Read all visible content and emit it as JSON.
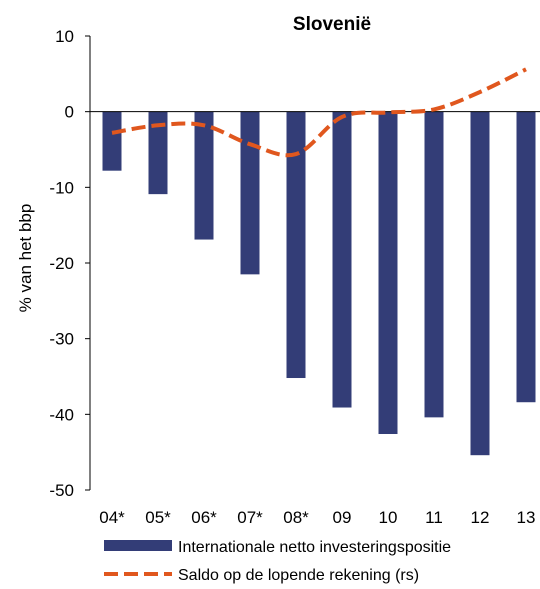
{
  "chart_data": {
    "type": "bar",
    "title": "Slovenië",
    "ylabel": "% van het bbp",
    "xlabel": "",
    "ylim": [
      -50,
      10
    ],
    "yticks": [
      10,
      0,
      -10,
      -20,
      -30,
      -40,
      -50
    ],
    "categories": [
      "04*",
      "05*",
      "06*",
      "07*",
      "08*",
      "09",
      "10",
      "11",
      "12",
      "13"
    ],
    "series": [
      {
        "name": "Internationale netto investeringspositie",
        "type": "bar",
        "color": "#333d77",
        "values": [
          -7.8,
          -10.9,
          -16.9,
          -21.5,
          -35.2,
          -39.1,
          -42.6,
          -40.4,
          -45.4,
          -38.4
        ]
      },
      {
        "name": "Saldo op de lopende rekening (rs)",
        "type": "line",
        "style": "dashed",
        "color": "#e0571e",
        "values": [
          -2.8,
          -1.8,
          -1.8,
          -4.3,
          -5.6,
          -0.7,
          -0.1,
          0.3,
          2.6,
          5.6
        ]
      }
    ],
    "grid": false,
    "legend_position": "bottom"
  }
}
